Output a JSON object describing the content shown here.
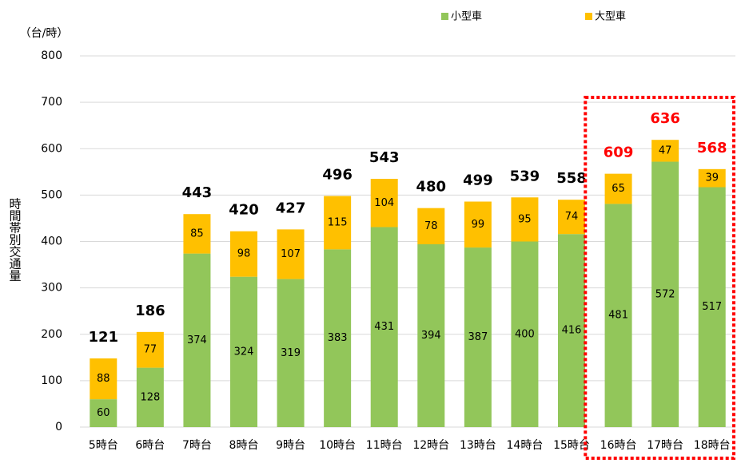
{
  "chart_data": {
    "type": "stacked_bar",
    "y_unit": "（台/時）",
    "ylabel": "時間帯別交通量",
    "categories": [
      "5時台",
      "6時台",
      "7時台",
      "8時台",
      "9時台",
      "10時台",
      "11時台",
      "12時台",
      "13時台",
      "14時台",
      "15時台",
      "16時台",
      "17時台",
      "18時台"
    ],
    "series": [
      {
        "name": "小型車",
        "color": "#92c65a",
        "values": [
          60,
          128,
          374,
          324,
          319,
          383,
          431,
          394,
          387,
          400,
          416,
          481,
          572,
          517
        ]
      },
      {
        "name": "大型車",
        "color": "#ffc000",
        "values": [
          88,
          77,
          85,
          98,
          107,
          115,
          104,
          78,
          99,
          95,
          74,
          65,
          47,
          39
        ]
      }
    ],
    "annotations": [
      "121",
      "186",
      "443",
      "420",
      "427",
      "496",
      "543",
      "480",
      "499",
      "539",
      "558",
      "609",
      "636",
      "568"
    ],
    "highlight": {
      "categories": [
        "16時台",
        "17時台",
        "18時台"
      ],
      "color": "#ff0000"
    },
    "ylim": [
      0,
      800
    ],
    "yticks": [
      0,
      100,
      200,
      300,
      400,
      500,
      600,
      700,
      800
    ],
    "grid": true,
    "legend": "top"
  }
}
